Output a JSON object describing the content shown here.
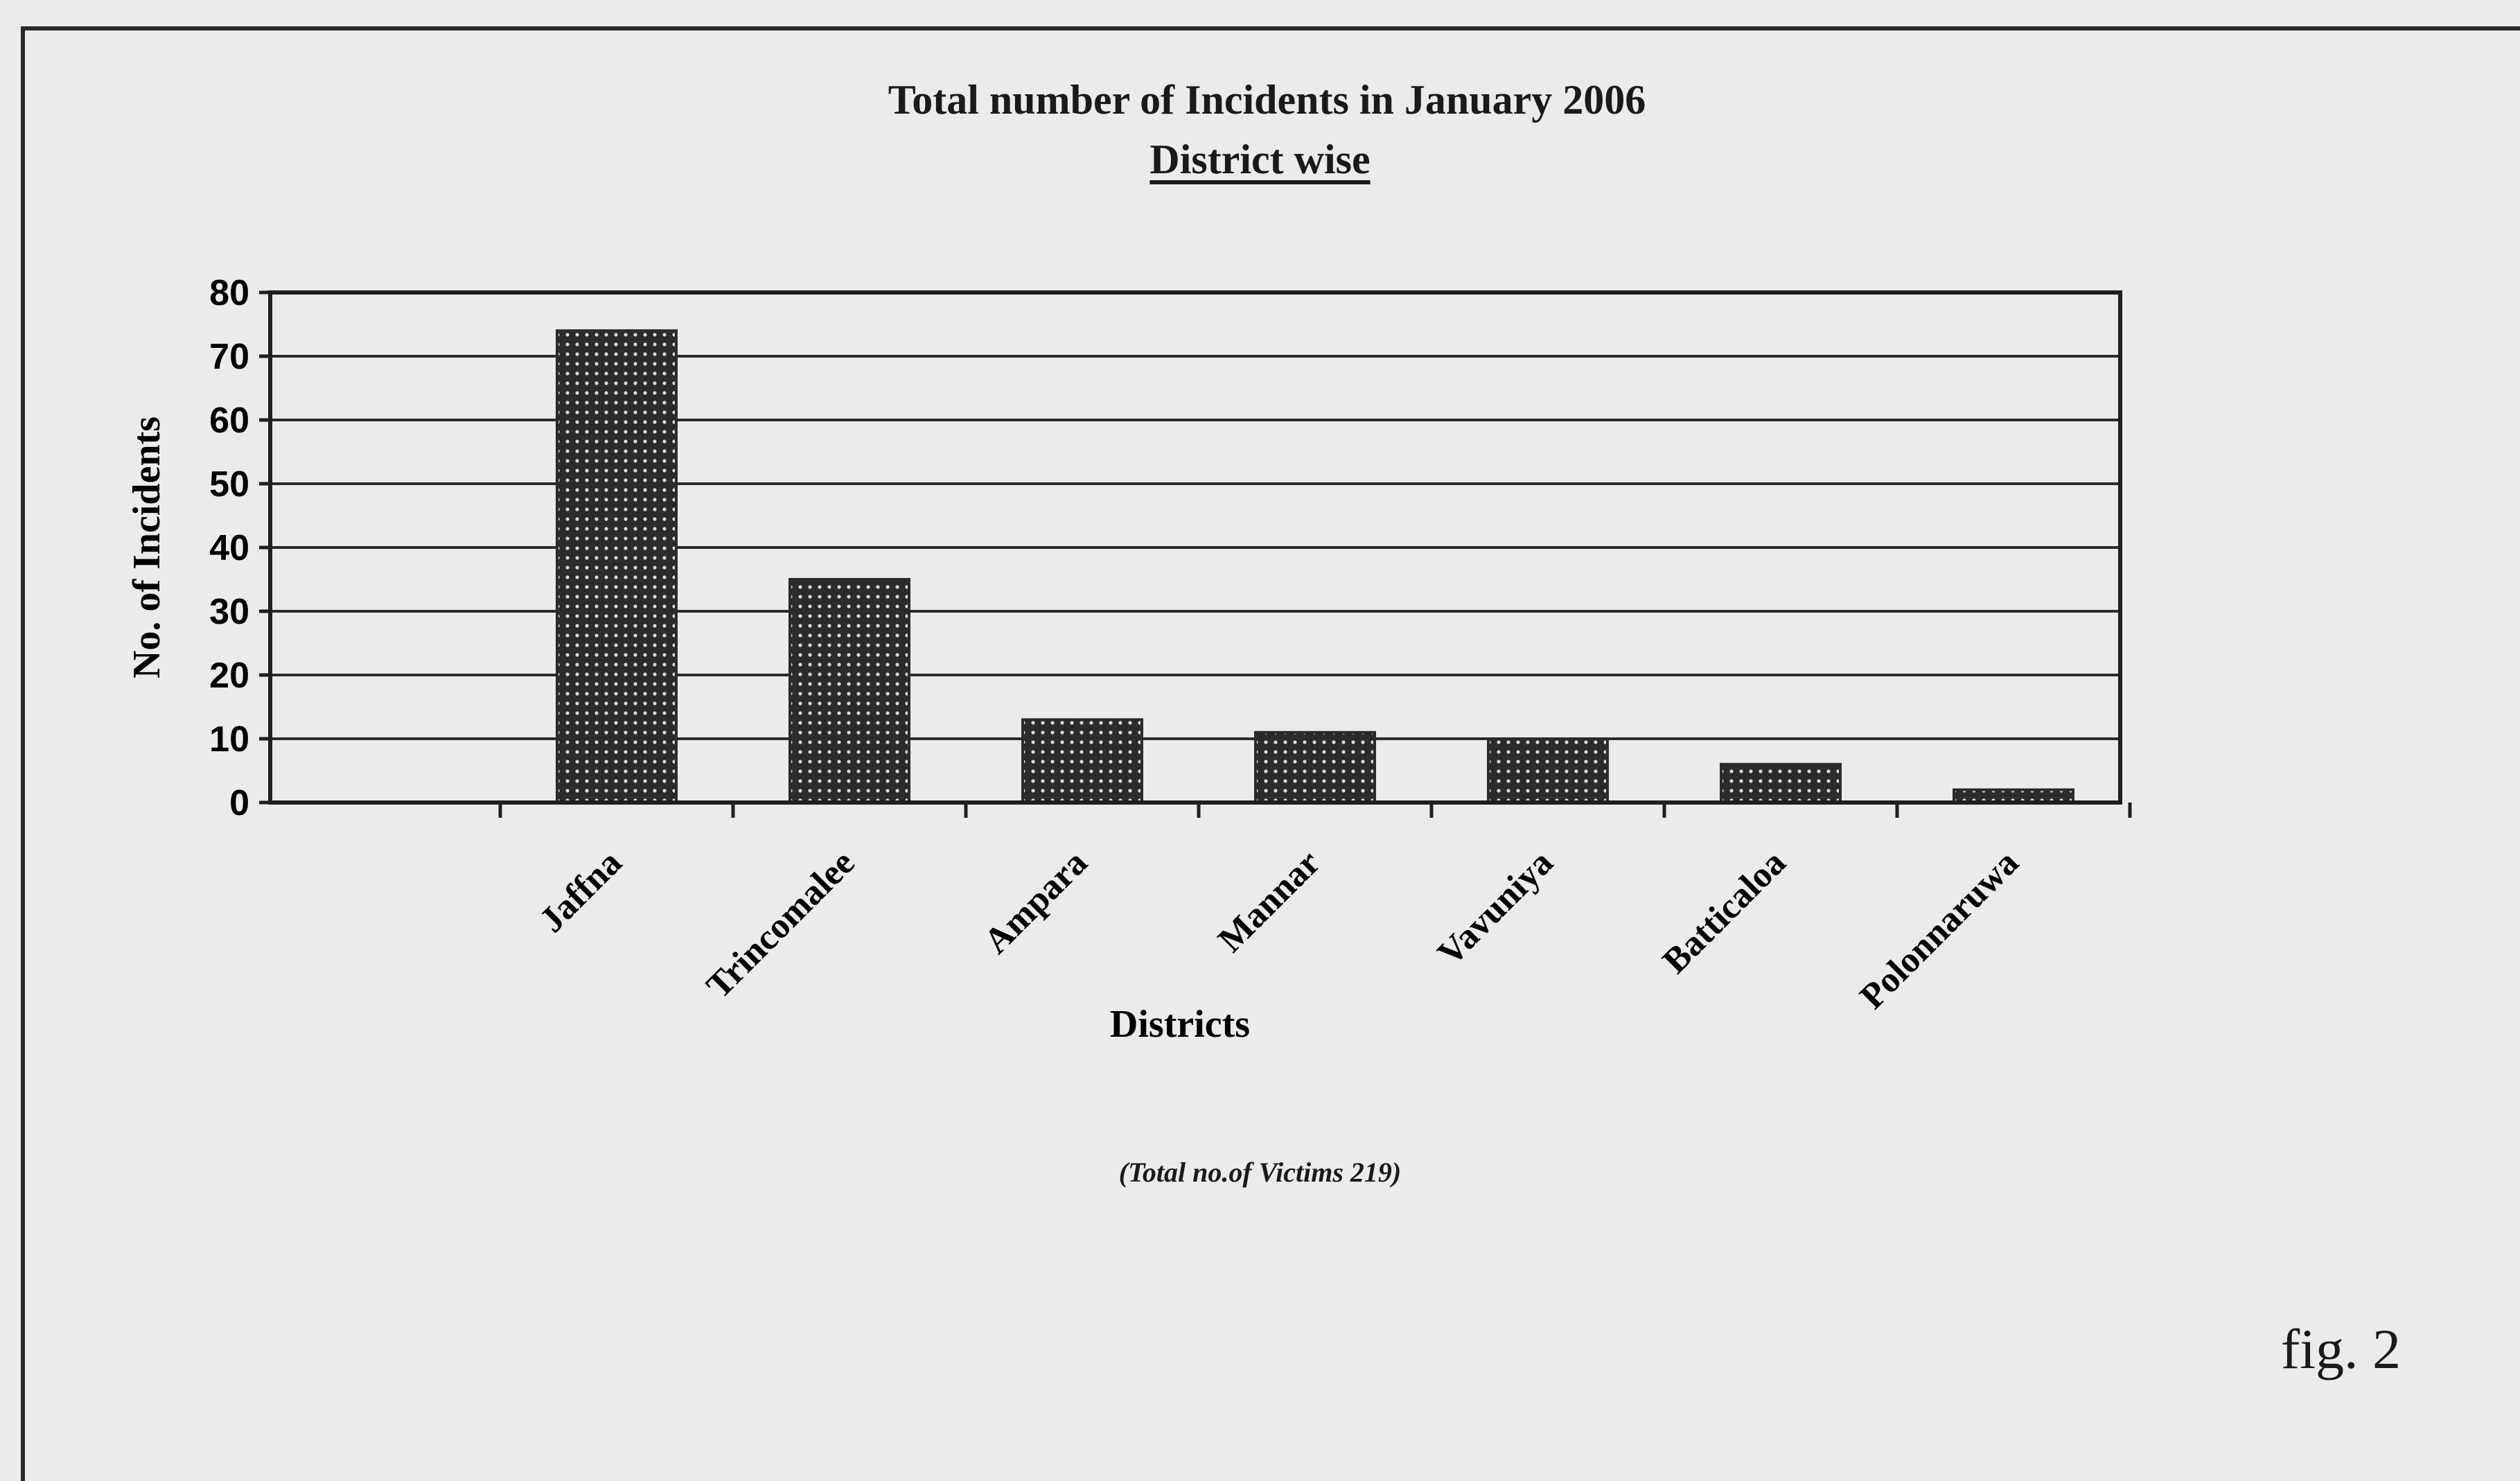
{
  "chart_data": {
    "type": "bar",
    "title": "Total number of Incidents in January 2006",
    "subtitle": "District wise",
    "xlabel": "Districts",
    "ylabel": "No. of Incidents",
    "categories": [
      "Jaffna",
      "Trincomalee",
      "Ampara",
      "Mannar",
      "Vavuniya",
      "Batticaloa",
      "Polonnaruwa"
    ],
    "values": [
      74,
      35,
      13,
      11,
      10,
      6,
      2
    ],
    "ylim": [
      0,
      80
    ],
    "yticks": [
      "0",
      "10",
      "20",
      "30",
      "40",
      "50",
      "60",
      "70",
      "80"
    ],
    "grid": true,
    "bar_color": "#2b2b2b",
    "note": "(Total no.of Victims 219)"
  },
  "figure_label": "fig. 2"
}
